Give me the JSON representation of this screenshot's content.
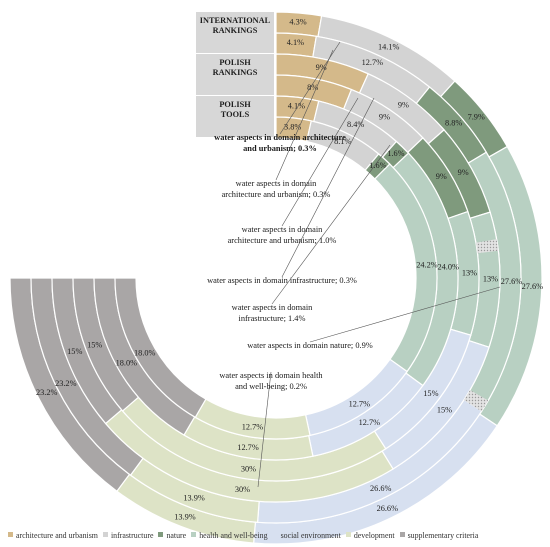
{
  "chart_data": {
    "type": "donut",
    "rings": [
      {
        "name": "INTERNATIONAL RANKINGS",
        "label_lines": [
          "INTERNATIONAL",
          "RANKINGS"
        ]
      },
      {
        "name": "POLISH RANKINGS",
        "label_lines": [
          "POLISH",
          "RANKINGS"
        ]
      },
      {
        "name": "POLISH TOOLS",
        "label_lines": [
          "POLISH",
          "TOOLS"
        ]
      }
    ],
    "series": [
      {
        "name": "architecture and urbanism",
        "color": "#d4b98a",
        "values": [
          4.3,
          4.1,
          9,
          8,
          4.1,
          3.8
        ]
      },
      {
        "name": "infrastructure",
        "color": "#d3d3d3",
        "values": [
          14.1,
          12.7,
          9,
          9,
          8.4,
          8.1
        ]
      },
      {
        "name": "nature",
        "color": "#7f9a7d",
        "values": [
          7.9,
          8.8,
          9,
          9,
          1.6,
          1.6
        ]
      },
      {
        "name": "health and well-being",
        "color": "#b8d0c2",
        "values": [
          27.6,
          27.6,
          13,
          13,
          24.0,
          24.2
        ]
      },
      {
        "name": "social environment",
        "color": "#d7e0f0",
        "values": [
          26.6,
          26.6,
          15,
          15,
          12.7,
          12.7
        ]
      },
      {
        "name": "development",
        "color": "#dde3c6",
        "values": [
          13.9,
          13.9,
          30,
          30,
          12.7,
          12.7
        ]
      },
      {
        "name": "supplementary criteria",
        "color": "#a9a6a6",
        "values": [
          23.2,
          23.2,
          15,
          15,
          18.0,
          18.0
        ]
      }
    ],
    "value_labels": [
      [
        "4.3%",
        "4.1%",
        "9%",
        "8%",
        "4.1%",
        "3.8%"
      ],
      [
        "14.1%",
        "12.7%",
        "9%",
        "9%",
        "8.4%",
        "8.1%"
      ],
      [
        "7.9%",
        "8.8%",
        "9%",
        "9%",
        "1.6%",
        "1.6%"
      ],
      [
        "27.6%",
        "27.6%",
        "13%",
        "13%",
        "24.0%",
        "24.2%"
      ],
      [
        "26.6%",
        "26.6%",
        "15%",
        "15%",
        "12.7%",
        "12.7%"
      ],
      [
        "13.9%",
        "13.9%",
        "30%",
        "30%",
        "12.7%",
        "12.7%"
      ],
      [
        "23.2%",
        "23.2%",
        "15%",
        "15%",
        "18.0%",
        "18.0%"
      ]
    ],
    "annotations": [
      {
        "text": "water aspects in domain architecture and urbanism; 0.3%",
        "lines": [
          "water aspects in domain architecture",
          "and urbanism; 0.3%"
        ],
        "bold": true
      },
      {
        "text": "water aspects in domain architecture and urbanism; 0.3%",
        "lines": [
          "water aspects in domain",
          "architecture and urbanism; 0.3%"
        ],
        "bold": false
      },
      {
        "text": "water aspects in domain architecture and urbanism; 1.0%",
        "lines": [
          "water aspects in domain",
          "architecture and urbanism; 1.0%"
        ],
        "bold": false
      },
      {
        "text": "water aspects in domain infrastructure; 0.3%",
        "lines": [
          "water aspects in domain infrastructure; 0.3%"
        ],
        "bold": false
      },
      {
        "text": "water aspects in domain infrastructure; 1.4%",
        "lines": [
          "water aspects in domain",
          "infrastructure; 1.4%"
        ],
        "bold": false
      },
      {
        "text": "water aspects in domain nature; 0.9%",
        "lines": [
          "water aspects in domain nature; 0.9%"
        ],
        "bold": false
      },
      {
        "text": "water aspects in domain health and well-being; 0.2%",
        "lines": [
          "water aspects in domain health",
          "and well-being; 0.2%"
        ],
        "bold": false
      }
    ],
    "legend": {
      "position": "bottom",
      "entries": [
        "architecture and urbanism",
        "infrastructure",
        "nature",
        "health and well-being",
        "social environment",
        "development",
        "supplementary criteria"
      ]
    }
  }
}
